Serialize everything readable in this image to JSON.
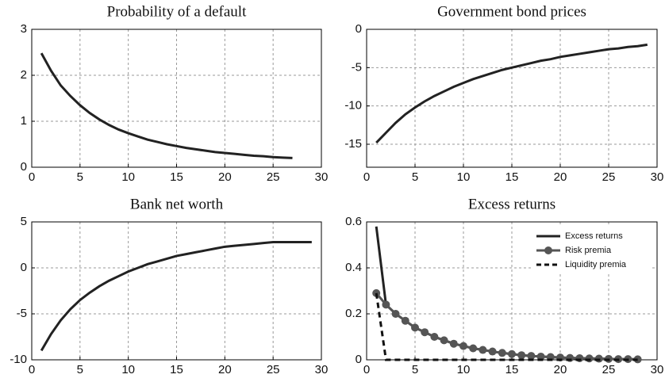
{
  "chart_data": [
    {
      "type": "line",
      "title": "Probability of a default",
      "x": [
        1,
        2,
        3,
        4,
        5,
        6,
        7,
        8,
        9,
        10,
        11,
        12,
        13,
        14,
        15,
        16,
        17,
        18,
        19,
        20,
        21,
        22,
        23,
        24,
        25,
        26,
        27
      ],
      "values": [
        2.48,
        2.1,
        1.78,
        1.55,
        1.35,
        1.18,
        1.04,
        0.92,
        0.82,
        0.74,
        0.67,
        0.6,
        0.55,
        0.5,
        0.46,
        0.42,
        0.39,
        0.36,
        0.33,
        0.31,
        0.29,
        0.27,
        0.25,
        0.24,
        0.22,
        0.21,
        0.2
      ],
      "color": "#222222",
      "xlim": [
        0,
        30
      ],
      "xticks": [
        0,
        5,
        10,
        15,
        20,
        25,
        30
      ],
      "ylim": [
        0,
        3
      ],
      "yticks": [
        0,
        1,
        2,
        3
      ],
      "grid": true
    },
    {
      "type": "line",
      "title": "Government bond prices",
      "x": [
        1,
        2,
        3,
        4,
        5,
        6,
        7,
        8,
        9,
        10,
        11,
        12,
        13,
        14,
        15,
        16,
        17,
        18,
        19,
        20,
        21,
        22,
        23,
        24,
        25,
        26,
        27,
        28,
        29
      ],
      "values": [
        -14.8,
        -13.5,
        -12.2,
        -11.1,
        -10.2,
        -9.4,
        -8.7,
        -8.1,
        -7.5,
        -7.0,
        -6.5,
        -6.1,
        -5.7,
        -5.3,
        -5.0,
        -4.7,
        -4.4,
        -4.1,
        -3.9,
        -3.6,
        -3.4,
        -3.2,
        -3.0,
        -2.8,
        -2.6,
        -2.5,
        -2.3,
        -2.2,
        -2.0
      ],
      "color": "#222222",
      "xlim": [
        0,
        30
      ],
      "xticks": [
        0,
        5,
        10,
        15,
        20,
        25,
        30
      ],
      "ylim": [
        -18,
        0
      ],
      "yticks": [
        -15,
        -10,
        -5,
        0
      ],
      "grid": true
    },
    {
      "type": "line",
      "title": "Bank net worth",
      "x": [
        1,
        2,
        3,
        4,
        5,
        6,
        7,
        8,
        9,
        10,
        11,
        12,
        13,
        14,
        15,
        16,
        17,
        18,
        19,
        20,
        21,
        22,
        23,
        24,
        25,
        26,
        27,
        28,
        29
      ],
      "values": [
        -9,
        -7.2,
        -5.7,
        -4.5,
        -3.5,
        -2.7,
        -2.0,
        -1.4,
        -0.9,
        -0.4,
        0,
        0.4,
        0.7,
        1.0,
        1.3,
        1.5,
        1.7,
        1.9,
        2.1,
        2.3,
        2.4,
        2.5,
        2.6,
        2.7,
        2.8,
        2.8,
        2.8,
        2.8,
        2.8
      ],
      "color": "#222222",
      "xlim": [
        0,
        30
      ],
      "xticks": [
        0,
        5,
        10,
        15,
        20,
        25,
        30
      ],
      "ylim": [
        -10,
        5
      ],
      "yticks": [
        -10,
        -5,
        0,
        5
      ],
      "grid": true
    },
    {
      "type": "line",
      "title": "Excess returns",
      "x": [
        1,
        2,
        3,
        4,
        5,
        6,
        7,
        8,
        9,
        10,
        11,
        12,
        13,
        14,
        15,
        16,
        17,
        18,
        19,
        20,
        21,
        22,
        23,
        24,
        25,
        26,
        27,
        28
      ],
      "series": [
        {
          "name": "Excess returns",
          "color": "#222222",
          "dash": false,
          "marker": false,
          "values": [
            0.58,
            0.24,
            0.2,
            0.17,
            0.14,
            0.12,
            0.1,
            0.085,
            0.07,
            0.06,
            0.05,
            0.043,
            0.036,
            0.03,
            0.025,
            0.02,
            0.017,
            0.014,
            0.012,
            0.01,
            0.008,
            0.007,
            0.006,
            0.005,
            0.004,
            0.003,
            0.003,
            0.002
          ]
        },
        {
          "name": "Risk premia",
          "color": "#555555",
          "dash": false,
          "marker": true,
          "values": [
            0.29,
            0.24,
            0.2,
            0.17,
            0.14,
            0.12,
            0.1,
            0.085,
            0.07,
            0.06,
            0.05,
            0.043,
            0.036,
            0.03,
            0.025,
            0.02,
            0.017,
            0.014,
            0.012,
            0.01,
            0.008,
            0.007,
            0.006,
            0.005,
            0.004,
            0.003,
            0.003,
            0.002
          ]
        },
        {
          "name": "Liquidity premia",
          "color": "#111111",
          "dash": true,
          "marker": false,
          "values": [
            0.29,
            0,
            0,
            0,
            0,
            0,
            0,
            0,
            0,
            0,
            0,
            0,
            0,
            0,
            0,
            0,
            0,
            0,
            0,
            0,
            0,
            0,
            0,
            0,
            0,
            0,
            0,
            0
          ]
        }
      ],
      "legend": "upper right",
      "xlim": [
        0,
        30
      ],
      "xticks": [
        0,
        5,
        10,
        15,
        20,
        25,
        30
      ],
      "ylim": [
        0,
        0.6
      ],
      "yticks": [
        0,
        0.2,
        0.4,
        0.6
      ],
      "grid": true
    }
  ]
}
